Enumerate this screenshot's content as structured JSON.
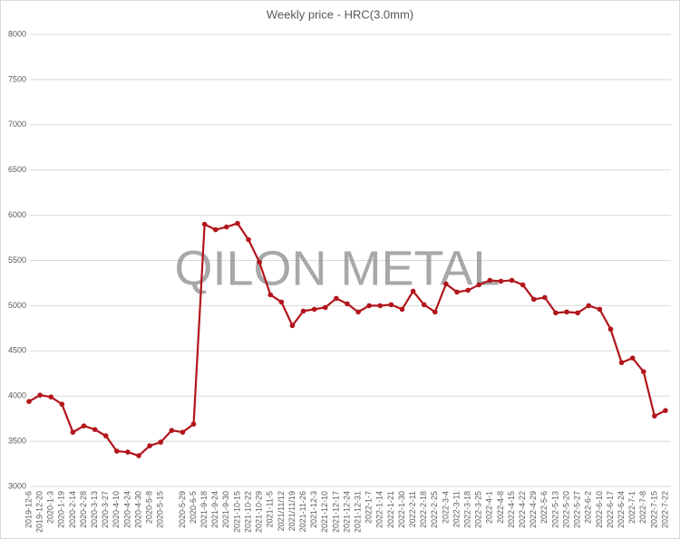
{
  "chart_data": {
    "type": "line",
    "title": "Weekly price - HRC(3.0mm)",
    "watermark": "QILON METAL",
    "categories": [
      "2019-12-6",
      "2019-12-20",
      "2020-1-3",
      "2020-1-19",
      "2020-2-14",
      "2020-2-28",
      "2020-3-13",
      "2020-3-27",
      "2020-4-10",
      "2020-4-24",
      "2020-4-30",
      "2020-5-8",
      "2020-5-15",
      null,
      "2020-5-29",
      "2020-6-5",
      "2021-9-18",
      "2021-9-24",
      "2021-9-30",
      "2021-10-15",
      "2021-10-22",
      "2021-10-29",
      "2021-11-5",
      "2021/11/12",
      "2021/11/19",
      "2021-11-26",
      "2021-12-3",
      "2021-12-10",
      "2021-12-17",
      "2021-12-24",
      "2021-12-31",
      "2022-1-7",
      "2022-1-14",
      "2022-1-21",
      "2022-1-30",
      "2022-2-11",
      "2022-2-18",
      "2022-2-25",
      "2022-3-4",
      "2022-3-11",
      "2022-3-18",
      "2022-3-25",
      "2022-4-1",
      "2022-4-8",
      "2022-4-15",
      "2022-4-22",
      "2022-4-29",
      "2022-5-6",
      "2022-5-13",
      "2022-5-20",
      "2022-5-27",
      "2022-6-2",
      "2022-6-10",
      "2022-6-17",
      "2022-6-24",
      "2022-7-1",
      "2022-7-8",
      "2022-7-15",
      "2022-7-22"
    ],
    "series": [
      {
        "name": "HRC(3.0mm)",
        "color": "#b2151b",
        "values": [
          3940,
          4010,
          3990,
          3910,
          3600,
          3670,
          3630,
          3560,
          3390,
          3380,
          3340,
          3450,
          3490,
          3620,
          3600,
          3690,
          5900,
          5840,
          5870,
          5910,
          5730,
          5480,
          5120,
          5040,
          4780,
          4940,
          4960,
          4980,
          5080,
          5020,
          4930,
          5000,
          5000,
          5010,
          4960,
          5160,
          5010,
          4930,
          5240,
          5150,
          5170,
          5230,
          5280,
          5270,
          5280,
          5230,
          5070,
          5090,
          4920,
          4930,
          4920,
          5000,
          4960,
          4740,
          4370,
          4420,
          4270,
          3780,
          3840
        ]
      }
    ],
    "ylim": [
      3000,
      8000
    ],
    "yticks": [
      3000,
      3500,
      4000,
      4500,
      5000,
      5500,
      6000,
      6500,
      7000,
      7500,
      8000
    ],
    "grid": true
  }
}
